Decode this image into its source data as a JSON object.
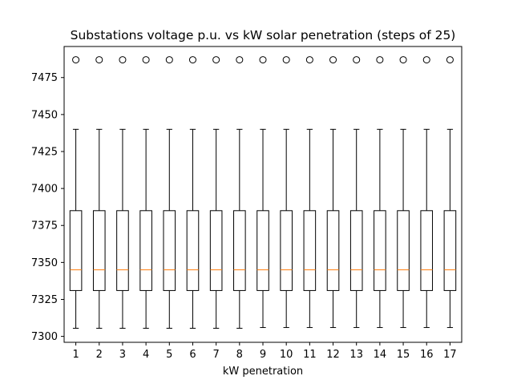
{
  "chart_data": {
    "type": "box",
    "title": "Substations voltage p.u. vs kW solar penetration (steps of 25)",
    "xlabel": "kW penetration",
    "ylabel": "",
    "ylim": [
      7296,
      7496
    ],
    "yticks": [
      7300,
      7325,
      7350,
      7375,
      7400,
      7425,
      7450,
      7475
    ],
    "categories": [
      "1",
      "2",
      "3",
      "4",
      "5",
      "6",
      "7",
      "8",
      "9",
      "10",
      "11",
      "12",
      "13",
      "14",
      "15",
      "16",
      "17"
    ],
    "boxes": [
      {
        "whisker_low": 7305.5,
        "q1": 7331,
        "median": 7345,
        "q3": 7385,
        "whisker_high": 7440,
        "outliers": [
          7487
        ]
      },
      {
        "whisker_low": 7305.5,
        "q1": 7331,
        "median": 7345,
        "q3": 7385,
        "whisker_high": 7440,
        "outliers": [
          7487
        ]
      },
      {
        "whisker_low": 7305.5,
        "q1": 7331,
        "median": 7345,
        "q3": 7385,
        "whisker_high": 7440,
        "outliers": [
          7487
        ]
      },
      {
        "whisker_low": 7305.5,
        "q1": 7331,
        "median": 7345,
        "q3": 7385,
        "whisker_high": 7440,
        "outliers": [
          7487
        ]
      },
      {
        "whisker_low": 7305.5,
        "q1": 7331,
        "median": 7345,
        "q3": 7385,
        "whisker_high": 7440,
        "outliers": [
          7487
        ]
      },
      {
        "whisker_low": 7305.5,
        "q1": 7331,
        "median": 7345,
        "q3": 7385,
        "whisker_high": 7440,
        "outliers": [
          7487
        ]
      },
      {
        "whisker_low": 7305.5,
        "q1": 7331,
        "median": 7345,
        "q3": 7385,
        "whisker_high": 7440,
        "outliers": [
          7487
        ]
      },
      {
        "whisker_low": 7305.5,
        "q1": 7331,
        "median": 7345,
        "q3": 7385,
        "whisker_high": 7440,
        "outliers": [
          7487
        ]
      },
      {
        "whisker_low": 7306,
        "q1": 7331,
        "median": 7345,
        "q3": 7385,
        "whisker_high": 7440,
        "outliers": [
          7487
        ]
      },
      {
        "whisker_low": 7306,
        "q1": 7331,
        "median": 7345,
        "q3": 7385,
        "whisker_high": 7440,
        "outliers": [
          7487
        ]
      },
      {
        "whisker_low": 7306,
        "q1": 7331,
        "median": 7345,
        "q3": 7385,
        "whisker_high": 7440,
        "outliers": [
          7487
        ]
      },
      {
        "whisker_low": 7306,
        "q1": 7331,
        "median": 7345,
        "q3": 7385,
        "whisker_high": 7440,
        "outliers": [
          7487
        ]
      },
      {
        "whisker_low": 7306,
        "q1": 7331,
        "median": 7345,
        "q3": 7385,
        "whisker_high": 7440,
        "outliers": [
          7487
        ]
      },
      {
        "whisker_low": 7306,
        "q1": 7331,
        "median": 7345,
        "q3": 7385,
        "whisker_high": 7440,
        "outliers": [
          7487
        ]
      },
      {
        "whisker_low": 7306,
        "q1": 7331,
        "median": 7345,
        "q3": 7385,
        "whisker_high": 7440,
        "outliers": [
          7487
        ]
      },
      {
        "whisker_low": 7306,
        "q1": 7331,
        "median": 7345,
        "q3": 7385,
        "whisker_high": 7440,
        "outliers": [
          7487
        ]
      },
      {
        "whisker_low": 7306,
        "q1": 7331,
        "median": 7345,
        "q3": 7385,
        "whisker_high": 7440,
        "outliers": [
          7487
        ]
      }
    ],
    "grid": false,
    "colors": {
      "box": "#000000",
      "median": "#ff7f0e",
      "outlier": "#000000",
      "background": "#ffffff"
    }
  }
}
